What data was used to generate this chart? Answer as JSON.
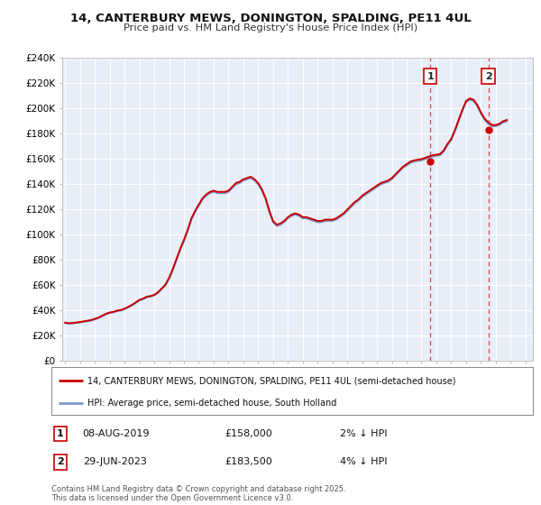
{
  "title": "14, CANTERBURY MEWS, DONINGTON, SPALDING, PE11 4UL",
  "subtitle": "Price paid vs. HM Land Registry's House Price Index (HPI)",
  "ylim": [
    0,
    240000
  ],
  "yticks": [
    0,
    20000,
    40000,
    60000,
    80000,
    100000,
    120000,
    140000,
    160000,
    180000,
    200000,
    220000,
    240000
  ],
  "ytick_labels": [
    "£0",
    "£20K",
    "£40K",
    "£60K",
    "£80K",
    "£100K",
    "£120K",
    "£140K",
    "£160K",
    "£180K",
    "£200K",
    "£220K",
    "£240K"
  ],
  "background_color": "#ffffff",
  "plot_bg_color": "#e8eef8",
  "grid_color": "#ffffff",
  "red_line_color": "#cc0000",
  "blue_line_color": "#7799cc",
  "marker1_label": "1",
  "marker2_label": "2",
  "marker1_date_str": "08-AUG-2019",
  "marker2_date_str": "29-JUN-2023",
  "marker1_price": 158000,
  "marker2_price": 183500,
  "marker1_note": "2% ↓ HPI",
  "marker2_note": "4% ↓ HPI",
  "legend_red_label": "14, CANTERBURY MEWS, DONINGTON, SPALDING, PE11 4UL (semi-detached house)",
  "legend_blue_label": "HPI: Average price, semi-detached house, South Holland",
  "footer_text": "Contains HM Land Registry data © Crown copyright and database right 2025.\nThis data is licensed under the Open Government Licence v3.0.",
  "hpi_data_x": [
    1995.0,
    1995.25,
    1995.5,
    1995.75,
    1996.0,
    1996.25,
    1996.5,
    1996.75,
    1997.0,
    1997.25,
    1997.5,
    1997.75,
    1998.0,
    1998.25,
    1998.5,
    1998.75,
    1999.0,
    1999.25,
    1999.5,
    1999.75,
    2000.0,
    2000.25,
    2000.5,
    2000.75,
    2001.0,
    2001.25,
    2001.5,
    2001.75,
    2002.0,
    2002.25,
    2002.5,
    2002.75,
    2003.0,
    2003.25,
    2003.5,
    2003.75,
    2004.0,
    2004.25,
    2004.5,
    2004.75,
    2005.0,
    2005.25,
    2005.5,
    2005.75,
    2006.0,
    2006.25,
    2006.5,
    2006.75,
    2007.0,
    2007.25,
    2007.5,
    2007.75,
    2008.0,
    2008.25,
    2008.5,
    2008.75,
    2009.0,
    2009.25,
    2009.5,
    2009.75,
    2010.0,
    2010.25,
    2010.5,
    2010.75,
    2011.0,
    2011.25,
    2011.5,
    2011.75,
    2012.0,
    2012.25,
    2012.5,
    2012.75,
    2013.0,
    2013.25,
    2013.5,
    2013.75,
    2014.0,
    2014.25,
    2014.5,
    2014.75,
    2015.0,
    2015.25,
    2015.5,
    2015.75,
    2016.0,
    2016.25,
    2016.5,
    2016.75,
    2017.0,
    2017.25,
    2017.5,
    2017.75,
    2018.0,
    2018.25,
    2018.5,
    2018.75,
    2019.0,
    2019.25,
    2019.5,
    2019.75,
    2020.0,
    2020.25,
    2020.5,
    2020.75,
    2021.0,
    2021.25,
    2021.5,
    2021.75,
    2022.0,
    2022.25,
    2022.5,
    2022.75,
    2023.0,
    2023.25,
    2023.5,
    2023.75,
    2024.0,
    2024.25,
    2024.5,
    2024.75
  ],
  "hpi_data_y": [
    30000,
    29500,
    29800,
    30200,
    30500,
    31000,
    31500,
    32000,
    33000,
    34000,
    35500,
    37000,
    38000,
    38500,
    39500,
    40000,
    41000,
    42500,
    44000,
    46000,
    48000,
    49000,
    50500,
    51000,
    52000,
    54000,
    57000,
    60000,
    65000,
    72000,
    80000,
    88000,
    95000,
    103000,
    112000,
    118000,
    123000,
    128000,
    131000,
    133000,
    134000,
    133000,
    133000,
    133000,
    134000,
    137000,
    140000,
    141000,
    143000,
    144000,
    145000,
    143000,
    140000,
    135000,
    128000,
    118000,
    110000,
    107000,
    108000,
    110000,
    113000,
    115000,
    116000,
    115000,
    113000,
    113000,
    112000,
    111000,
    110000,
    110000,
    111000,
    111000,
    111000,
    112000,
    114000,
    116000,
    119000,
    122000,
    125000,
    127000,
    130000,
    132000,
    134000,
    136000,
    138000,
    140000,
    141000,
    142000,
    144000,
    147000,
    150000,
    153000,
    155000,
    157000,
    158000,
    158500,
    159000,
    160000,
    161000,
    162000,
    162500,
    163000,
    166000,
    171000,
    175000,
    182000,
    190000,
    198000,
    205000,
    207000,
    206000,
    202000,
    196000,
    191000,
    188000,
    186000,
    186000,
    187000,
    189000,
    190000
  ],
  "price_data_y": [
    30500,
    30000,
    30200,
    30500,
    31000,
    31500,
    32000,
    32500,
    33500,
    34500,
    36000,
    37500,
    38500,
    39000,
    40000,
    40500,
    41500,
    43000,
    44500,
    46500,
    48500,
    49500,
    51000,
    51500,
    52500,
    54500,
    57500,
    60500,
    66000,
    73000,
    81000,
    89000,
    96000,
    104000,
    113000,
    119000,
    124000,
    129000,
    132000,
    134000,
    135000,
    134000,
    134000,
    134000,
    135000,
    138000,
    141000,
    142000,
    144000,
    145000,
    146000,
    144000,
    141000,
    136000,
    129000,
    119000,
    111000,
    108000,
    109000,
    111000,
    114000,
    116000,
    117000,
    116000,
    114000,
    114000,
    113000,
    112000,
    111000,
    111000,
    112000,
    112000,
    112000,
    113000,
    115000,
    117000,
    120000,
    123000,
    126000,
    128000,
    131000,
    133000,
    135000,
    137000,
    139000,
    141000,
    142000,
    143000,
    145000,
    148000,
    151000,
    154000,
    156000,
    158000,
    159000,
    159500,
    160000,
    161000,
    162000,
    163000,
    163500,
    164000,
    167000,
    172000,
    176000,
    183000,
    191000,
    199000,
    206000,
    208000,
    207000,
    203000,
    197000,
    192000,
    189000,
    187000,
    187000,
    188000,
    190000,
    191000
  ],
  "marker1_x": 2019.583,
  "marker1_y": 158000,
  "marker2_x": 2023.5,
  "marker2_y": 183500,
  "xlim_left": 1994.8,
  "xlim_right": 2026.5,
  "xticks": [
    1995,
    1996,
    1997,
    1998,
    1999,
    2000,
    2001,
    2002,
    2003,
    2004,
    2005,
    2006,
    2007,
    2008,
    2009,
    2010,
    2011,
    2012,
    2013,
    2014,
    2015,
    2016,
    2017,
    2018,
    2019,
    2020,
    2021,
    2022,
    2023,
    2024,
    2025,
    2026
  ]
}
